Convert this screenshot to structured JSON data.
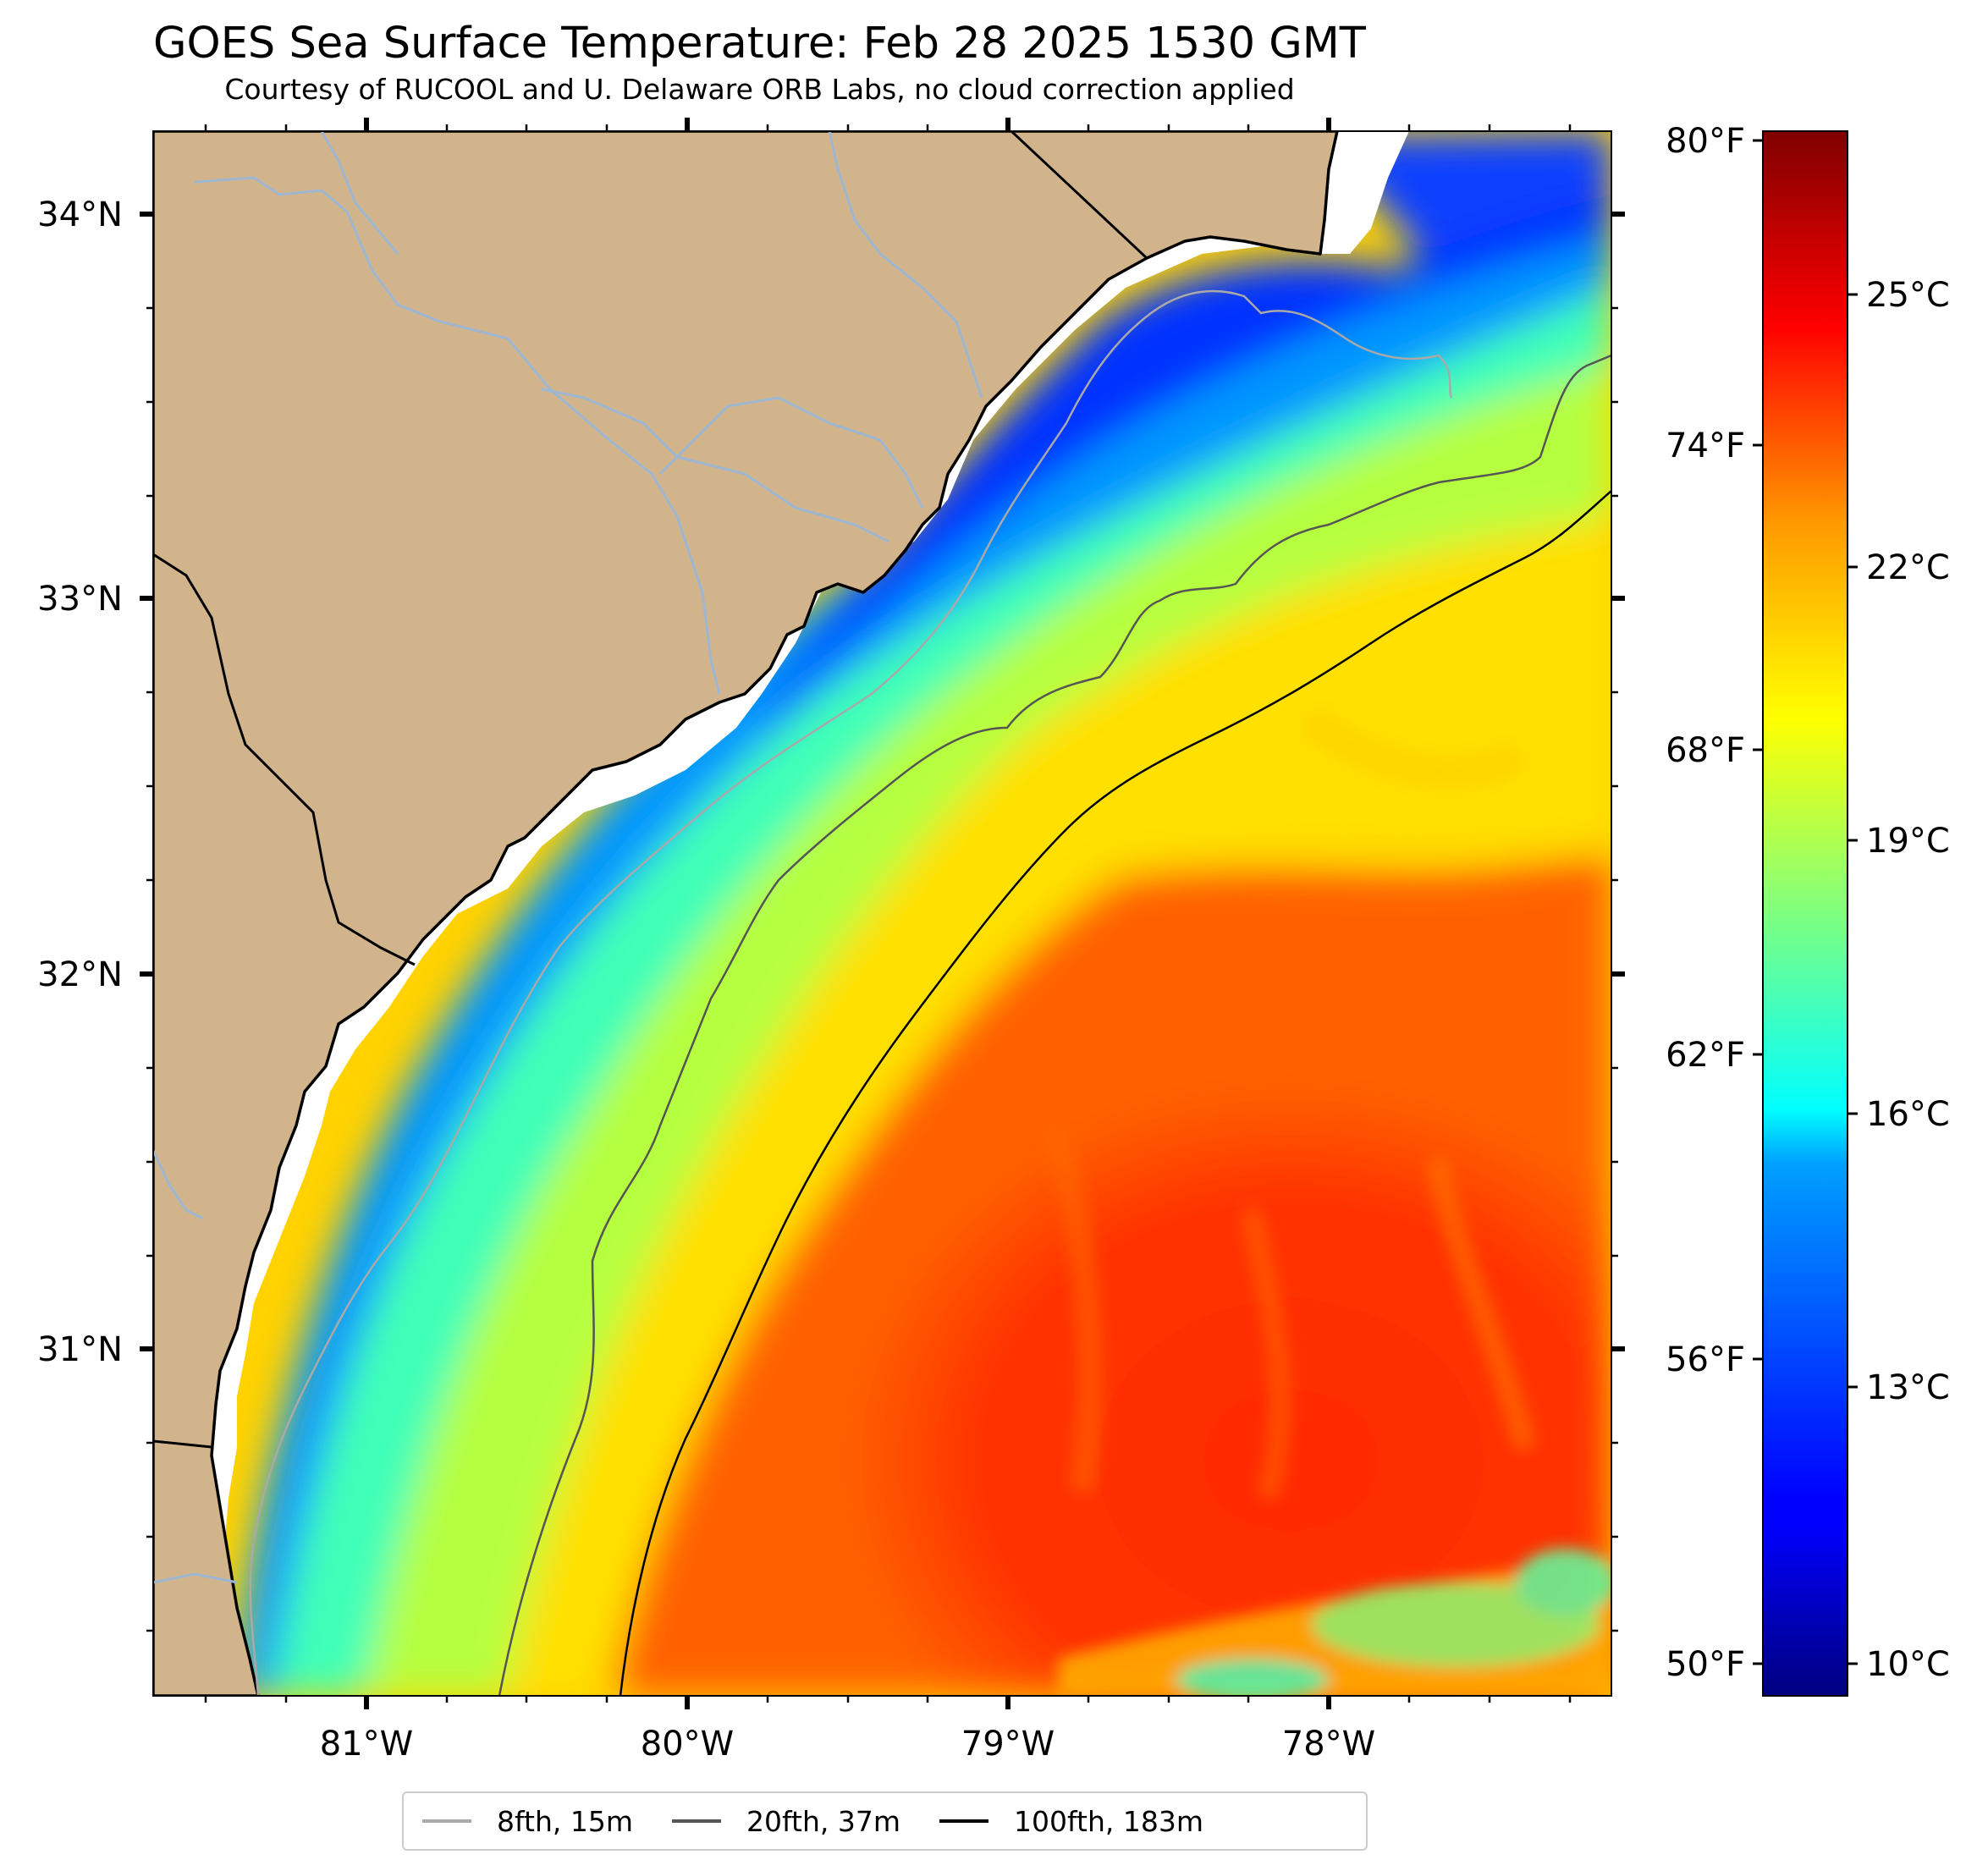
{
  "title": "GOES Sea Surface Temperature: Feb 28 2025 1530 GMT",
  "subtitle": "Courtesy of RUCOOL and U. Delaware ORB Labs, no cloud correction applied",
  "map": {
    "lon_range": [
      -81.67,
      -77.1
    ],
    "lat_range": [
      30.08,
      34.22
    ],
    "lat_labels": [
      "34°N",
      "33°N",
      "32°N",
      "31°N"
    ],
    "lon_labels": [
      "81°W",
      "80°W",
      "79°W",
      "78°W"
    ],
    "land_color": "#d2b48c",
    "shore_gap_color": "#ffffff"
  },
  "legend": {
    "items": [
      {
        "label": "8fth, 15m",
        "color": "#a9a9a9"
      },
      {
        "label": "20fth, 37m",
        "color": "#555555"
      },
      {
        "label": "100fth, 183m",
        "color": "#000000"
      }
    ]
  },
  "colorbar": {
    "range_c": [
      9.5,
      26.7
    ],
    "fahrenheit_labels": [
      "80°F",
      "74°F",
      "68°F",
      "62°F",
      "56°F",
      "50°F"
    ],
    "celsius_labels": [
      "25°C",
      "22°C",
      "19°C",
      "16°C",
      "13°C",
      "10°C"
    ],
    "colormap": "jet"
  }
}
